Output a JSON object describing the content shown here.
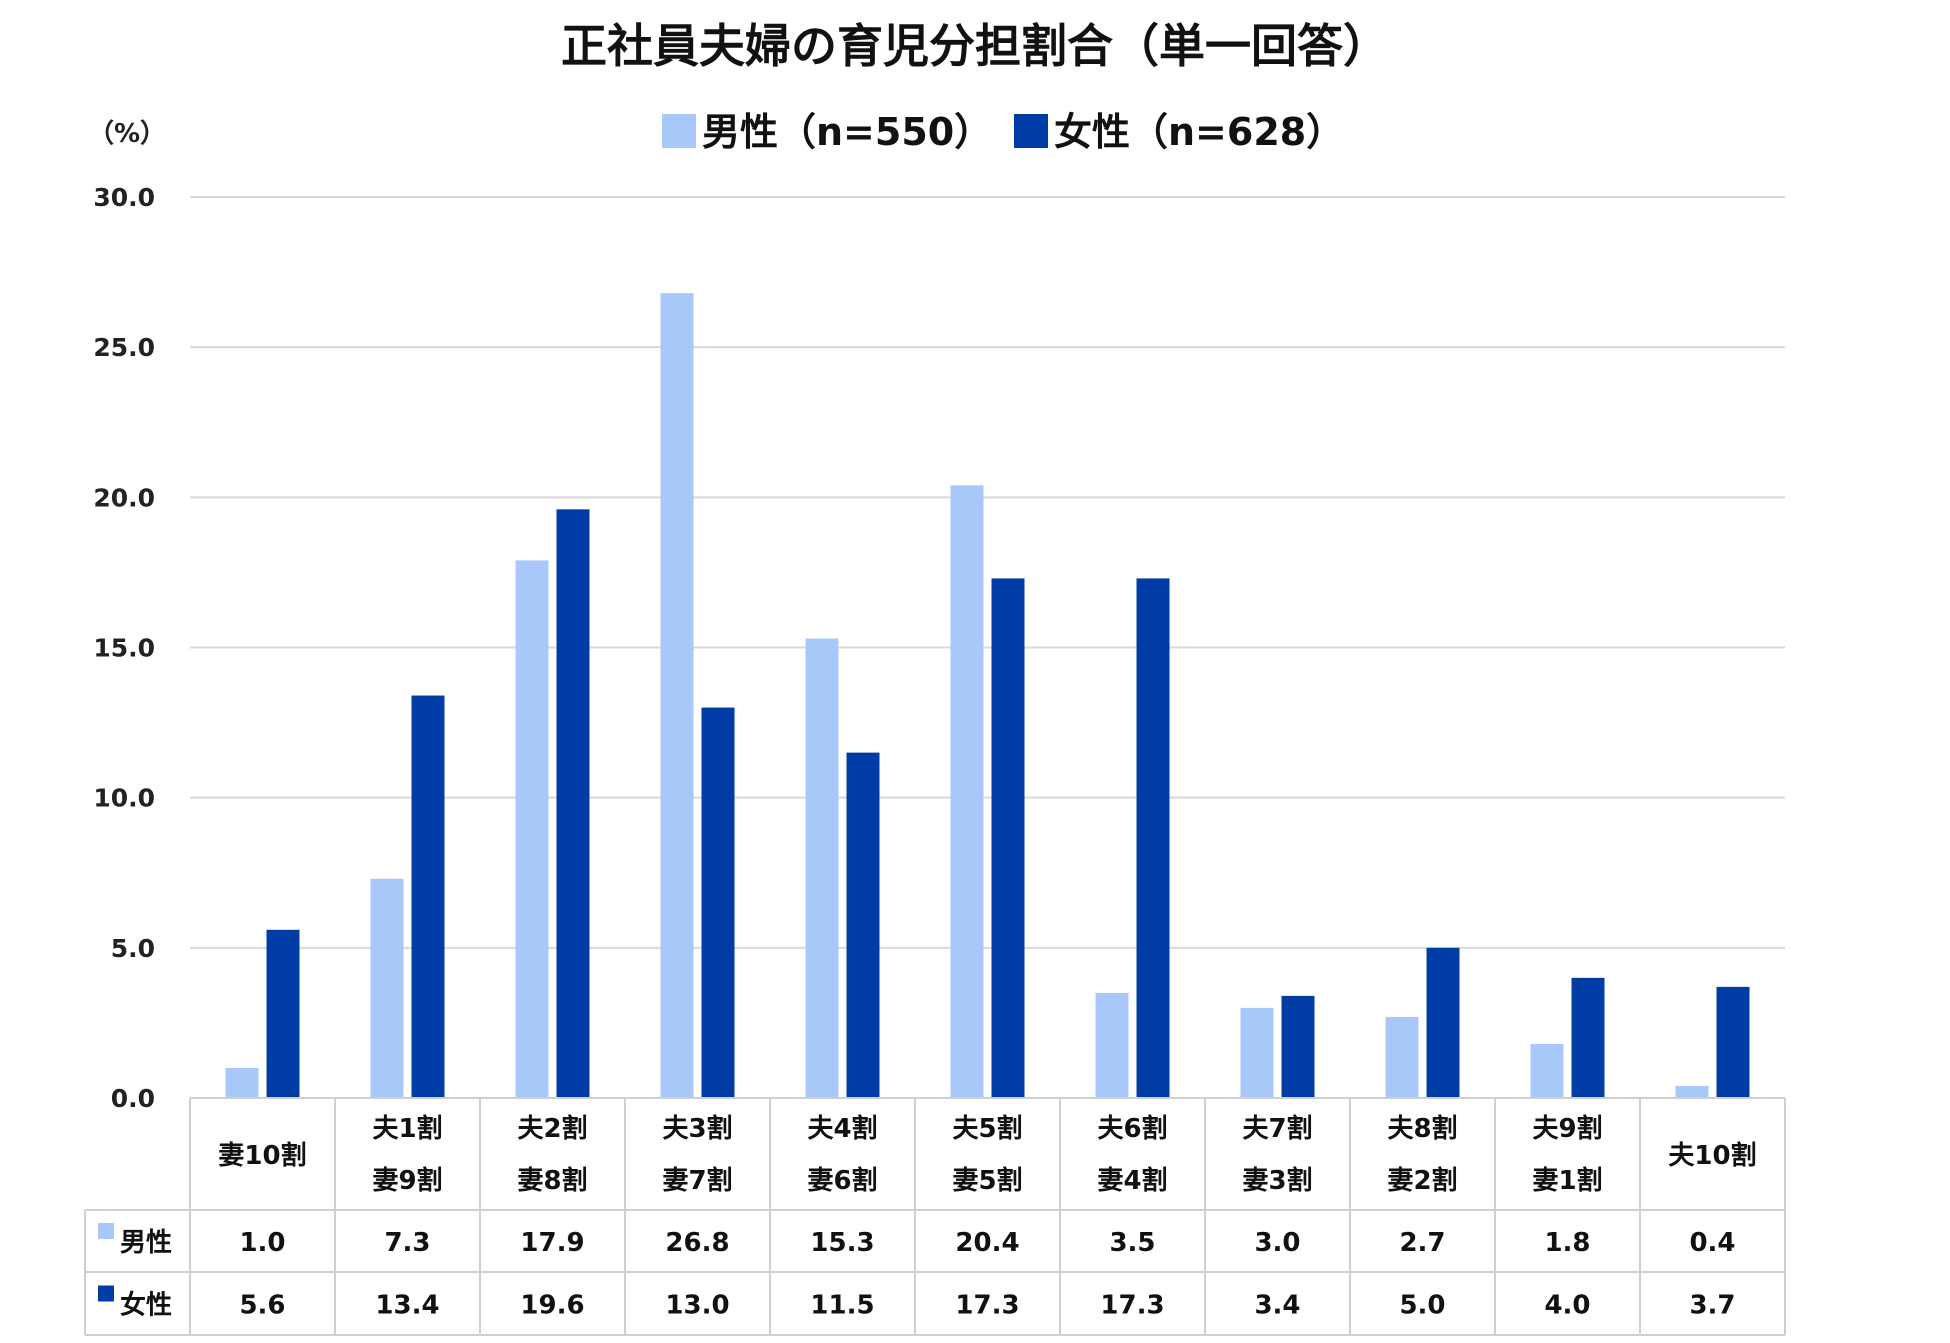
{
  "colors": {
    "male": "#A9C8FA",
    "female": "#003CA6",
    "grid": "#D9D9D9",
    "border": "#CFCFCF"
  },
  "chart_data": {
    "type": "bar",
    "title": "正社員夫婦の育児分担割合（単一回答）",
    "unit_label": "（%）",
    "ylim": [
      0,
      30
    ],
    "yticks": [
      "0.0",
      "5.0",
      "10.0",
      "15.0",
      "20.0",
      "25.0",
      "30.0"
    ],
    "grid": true,
    "legend_position": "top",
    "categories": [
      [
        "妻10割"
      ],
      [
        "夫1割",
        "妻9割"
      ],
      [
        "夫2割",
        "妻8割"
      ],
      [
        "夫3割",
        "妻7割"
      ],
      [
        "夫4割",
        "妻6割"
      ],
      [
        "夫5割",
        "妻5割"
      ],
      [
        "夫6割",
        "妻4割"
      ],
      [
        "夫7割",
        "妻3割"
      ],
      [
        "夫8割",
        "妻2割"
      ],
      [
        "夫9割",
        "妻1割"
      ],
      [
        "夫10割"
      ]
    ],
    "series": [
      {
        "name": "男性（n=550）",
        "table_label": "男性",
        "values": [
          1.0,
          7.3,
          17.9,
          26.8,
          15.3,
          20.4,
          3.5,
          3.0,
          2.7,
          1.8,
          0.4
        ],
        "labels": [
          "1.0",
          "7.3",
          "17.9",
          "26.8",
          "15.3",
          "20.4",
          "3.5",
          "3.0",
          "2.7",
          "1.8",
          "0.4"
        ]
      },
      {
        "name": "女性（n=628）",
        "table_label": "女性",
        "values": [
          5.6,
          13.4,
          19.6,
          13.0,
          11.5,
          17.3,
          17.3,
          3.4,
          5.0,
          4.0,
          3.7
        ],
        "labels": [
          "5.6",
          "13.4",
          "19.6",
          "13.0",
          "11.5",
          "17.3",
          "17.3",
          "3.4",
          "5.0",
          "4.0",
          "3.7"
        ]
      }
    ]
  }
}
